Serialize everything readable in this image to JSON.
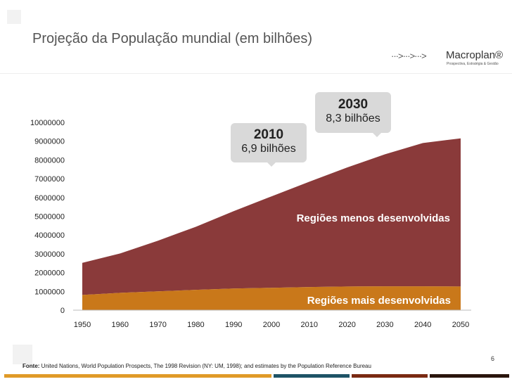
{
  "title": "Projeção da População mundial (em bilhões)",
  "logo": {
    "arrows": "···>···>···>",
    "name": "Macroplan®",
    "tagline": "Prospectiva, Estratégia & Gestão"
  },
  "callouts": [
    {
      "year": "2010",
      "value": "6,9 bilhões"
    },
    {
      "year": "2030",
      "value": "8,3 bilhões"
    }
  ],
  "source": {
    "label": "Fonte:",
    "text": " United Nations, World Population Prospects, The 1998 Revision (NY: UM, 1998); and estimates by the Population Reference Bureau"
  },
  "page_number": "6",
  "colors": {
    "more": "#c9781a",
    "less": "#8a3a3a",
    "bars": [
      "#e09a28",
      "#1e5366",
      "#7a2a12",
      "#2a150c"
    ]
  },
  "chart_data": {
    "type": "area",
    "stacked": true,
    "x": [
      1950,
      1960,
      1970,
      1980,
      1990,
      2000,
      2010,
      2020,
      2030,
      2040,
      2050
    ],
    "ylim": [
      0,
      10000000
    ],
    "yticks": [
      0,
      1000000,
      2000000,
      3000000,
      4000000,
      5000000,
      6000000,
      7000000,
      8000000,
      9000000,
      10000000
    ],
    "series": [
      {
        "name": "Regiões mais desenvolvidas",
        "values": [
          810000,
          920000,
          1000000,
          1080000,
          1150000,
          1190000,
          1230000,
          1260000,
          1270000,
          1270000,
          1260000
        ]
      },
      {
        "name": "Regiões menos desenvolvidas",
        "values": [
          1710000,
          2100000,
          2700000,
          3360000,
          4120000,
          4870000,
          5610000,
          6340000,
          7030000,
          7630000,
          7890000
        ]
      }
    ],
    "grid": false,
    "legend": "inline labels"
  }
}
